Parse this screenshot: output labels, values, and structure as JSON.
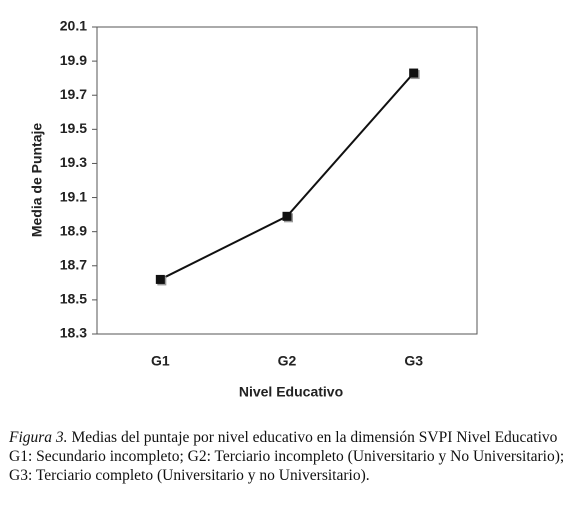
{
  "chart_data": {
    "type": "line",
    "y_label": "Media de Puntaje",
    "x_label": "Nivel Educativo",
    "categories": [
      "G1",
      "G2",
      "G3"
    ],
    "values": [
      18.62,
      18.99,
      19.83
    ],
    "color": "#111111",
    "ylim": [
      18.3,
      20.1
    ],
    "yticks": [
      18.3,
      18.5,
      18.7,
      18.9,
      19.1,
      19.3,
      19.5,
      19.7,
      19.9,
      20.1
    ],
    "grid": false
  },
  "caption": {
    "figure_label": "Figura 3.",
    "text": " Medias del puntaje por nivel educativo en la dimensión SVPI Nivel Educativo",
    "legend": "G1: Secundario incompleto; G2: Terciario incompleto (Universitario y No Universitario); G3: Terciario completo (Universitario y no Universitario)."
  }
}
